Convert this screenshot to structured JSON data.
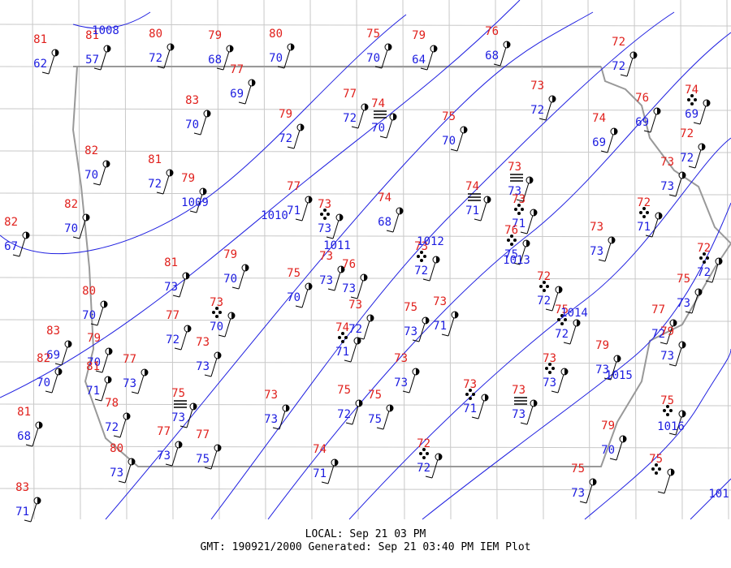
{
  "stations": [
    {
      "temp": 81,
      "dew": 62
    },
    {
      "temp": 81,
      "dew": 57
    },
    {
      "temp": 80,
      "dew": 72
    },
    {
      "temp": 79,
      "dew": 68
    },
    {
      "temp": 80,
      "dew": 70
    },
    {
      "temp": 75,
      "dew": 70
    },
    {
      "temp": 79,
      "dew": 64
    },
    {
      "temp": 76,
      "dew": 68
    },
    {
      "temp": 72,
      "dew": 72
    },
    {
      "temp": 77,
      "dew": 69
    },
    {
      "temp": 73,
      "dew": 72
    },
    {
      "temp": 83,
      "dew": 70
    },
    {
      "temp": 77,
      "dew": 72
    },
    {
      "temp": 74,
      "dew": 70
    },
    {
      "temp": 79,
      "dew": 72
    },
    {
      "temp": 76,
      "dew": 69
    },
    {
      "temp": 74,
      "dew": 69
    },
    {
      "temp": 74,
      "dew": 69
    },
    {
      "temp": 75,
      "dew": 70
    },
    {
      "temp": 72,
      "dew": 72
    },
    {
      "temp": 82,
      "dew": 70
    },
    {
      "temp": 81,
      "dew": 72
    },
    {
      "temp": 79
    },
    {
      "temp": 73,
      "dew": 73
    },
    {
      "temp": 73,
      "dew": 73
    },
    {
      "temp": 77,
      "dew": 71
    },
    {
      "temp": 73,
      "dew": 73
    },
    {
      "temp": 74,
      "dew": 68
    },
    {
      "temp": 74,
      "dew": 71
    },
    {
      "temp": 73,
      "dew": 71
    },
    {
      "temp": 72,
      "dew": 71
    },
    {
      "temp": 82,
      "dew": 70
    },
    {
      "temp": 82,
      "dew": 67
    },
    {
      "temp": 73,
      "dew": 73
    },
    {
      "temp": 76,
      "dew": 75
    },
    {
      "temp": 73,
      "dew": 72
    },
    {
      "temp": 72,
      "dew": 72
    },
    {
      "temp": 81,
      "dew": 73
    },
    {
      "temp": 79,
      "dew": 70
    },
    {
      "temp": 73,
      "dew": 73
    },
    {
      "temp": 76,
      "dew": 73
    },
    {
      "temp": 75,
      "dew": 70
    },
    {
      "temp": 72,
      "dew": 72
    },
    {
      "temp": 75,
      "dew": 73
    },
    {
      "temp": 80,
      "dew": 70
    },
    {
      "temp": 73,
      "dew": 70
    },
    {
      "temp": 77,
      "dew": 72
    },
    {
      "temp": 73,
      "dew": 72
    },
    {
      "temp": 75,
      "dew": 73
    },
    {
      "temp": 73,
      "dew": 71
    },
    {
      "temp": 75,
      "dew": 72
    },
    {
      "temp": 77,
      "dew": 72
    },
    {
      "temp": 74,
      "dew": 71
    },
    {
      "temp": 83,
      "dew": 69
    },
    {
      "temp": 79,
      "dew": 70
    },
    {
      "temp": 77,
      "dew": 73
    },
    {
      "temp": 73,
      "dew": 73
    },
    {
      "temp": 79,
      "dew": 73
    },
    {
      "temp": 82,
      "dew": 70
    },
    {
      "temp": 81,
      "dew": 71
    },
    {
      "temp": 73,
      "dew": 73
    },
    {
      "temp": 79,
      "dew": 73
    },
    {
      "temp": 73,
      "dew": 73
    },
    {
      "temp": 75,
      "dew": 73
    },
    {
      "temp": 73,
      "dew": 73
    },
    {
      "temp": 75,
      "dew": 72
    },
    {
      "temp": 75,
      "dew": 75
    },
    {
      "temp": 73,
      "dew": 71
    },
    {
      "temp": 73,
      "dew": 73
    },
    {
      "temp": 78,
      "dew": 72
    },
    {
      "temp": 75
    },
    {
      "temp": 81,
      "dew": 68
    },
    {
      "temp": 77,
      "dew": 73
    },
    {
      "temp": 77,
      "dew": 75
    },
    {
      "temp": 79,
      "dew": 70
    },
    {
      "temp": 80,
      "dew": 73
    },
    {
      "temp": 74,
      "dew": 71
    },
    {
      "temp": 72,
      "dew": 72
    },
    {
      "temp": 75
    },
    {
      "temp": 75,
      "dew": 73
    },
    {
      "temp": 83,
      "dew": 71
    }
  ],
  "isobar_labels": [
    1008,
    1009,
    1010,
    1011,
    1012,
    1013,
    1014,
    1015,
    1016,
    101
  ],
  "footer": {
    "local": "LOCAL: Sep 21 03 PM",
    "gmt": "GMT: 190921/2000 Generated: Sep 21 03:40 PM IEM Plot"
  }
}
